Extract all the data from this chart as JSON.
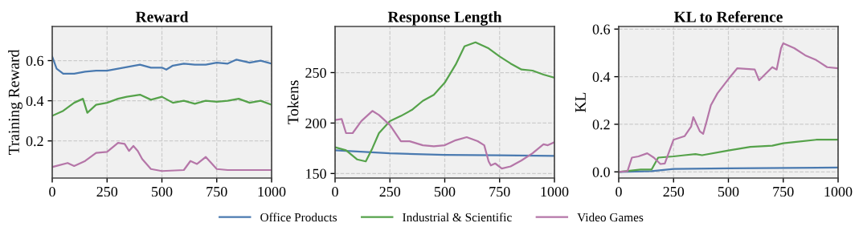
{
  "chart_data": [
    {
      "type": "line",
      "title": "Reward",
      "ylabel": "Training Reward",
      "xlim": [
        0,
        1000
      ],
      "xticks": [
        0,
        250,
        500,
        750,
        1000
      ],
      "ylim": [
        0.015,
        0.77
      ],
      "yticks": [
        0.2,
        0.4,
        0.6
      ],
      "grid": true,
      "legend": "bottom",
      "series": [
        {
          "name": "Office Products",
          "color": "#4a7ab0",
          "x": [
            0,
            20,
            50,
            100,
            150,
            200,
            250,
            300,
            350,
            400,
            450,
            500,
            520,
            550,
            600,
            650,
            700,
            750,
            800,
            840,
            900,
            950,
            1000
          ],
          "values": [
            0.62,
            0.56,
            0.535,
            0.535,
            0.545,
            0.55,
            0.55,
            0.56,
            0.57,
            0.58,
            0.565,
            0.565,
            0.555,
            0.575,
            0.585,
            0.58,
            0.58,
            0.59,
            0.585,
            0.605,
            0.59,
            0.6,
            0.585
          ]
        },
        {
          "name": "Industrial & Scientific",
          "color": "#55a24a",
          "x": [
            0,
            50,
            100,
            140,
            160,
            200,
            250,
            300,
            340,
            400,
            450,
            500,
            550,
            600,
            650,
            700,
            750,
            800,
            850,
            900,
            950,
            1000
          ],
          "values": [
            0.325,
            0.35,
            0.39,
            0.41,
            0.34,
            0.38,
            0.39,
            0.41,
            0.42,
            0.43,
            0.405,
            0.42,
            0.39,
            0.4,
            0.385,
            0.4,
            0.395,
            0.4,
            0.41,
            0.39,
            0.4,
            0.38
          ]
        },
        {
          "name": "Video Games",
          "color": "#b576a8",
          "x": [
            0,
            70,
            100,
            150,
            200,
            250,
            300,
            330,
            350,
            370,
            390,
            410,
            450,
            500,
            600,
            630,
            660,
            700,
            750,
            800,
            1000
          ],
          "values": [
            0.07,
            0.09,
            0.075,
            0.1,
            0.14,
            0.145,
            0.19,
            0.185,
            0.15,
            0.175,
            0.15,
            0.11,
            0.06,
            0.05,
            0.055,
            0.1,
            0.085,
            0.12,
            0.06,
            0.055,
            0.055
          ]
        }
      ]
    },
    {
      "type": "line",
      "title": "Response Length",
      "ylabel": "Tokens",
      "xlim": [
        0,
        1000
      ],
      "xticks": [
        0,
        250,
        500,
        750,
        1000
      ],
      "ylim": [
        145.5,
        295.7
      ],
      "yticks": [
        150,
        200,
        250
      ],
      "grid": true,
      "legend": "bottom",
      "series": [
        {
          "name": "Office Products",
          "color": "#4a7ab0",
          "x": [
            0,
            250,
            500,
            750,
            1000
          ],
          "values": [
            173,
            170,
            168.5,
            168,
            167.5
          ]
        },
        {
          "name": "Industrial & Scientific",
          "color": "#55a24a",
          "x": [
            0,
            50,
            100,
            140,
            170,
            200,
            250,
            300,
            350,
            400,
            450,
            500,
            550,
            590,
            640,
            700,
            750,
            800,
            850,
            900,
            950,
            1000
          ],
          "values": [
            176,
            173,
            164,
            162,
            175,
            190,
            202,
            207,
            213,
            222,
            228,
            240,
            258,
            276,
            280,
            274,
            266,
            259,
            253,
            252,
            248,
            245
          ]
        },
        {
          "name": "Video Games",
          "color": "#b576a8",
          "x": [
            0,
            30,
            50,
            80,
            120,
            170,
            200,
            250,
            300,
            340,
            400,
            450,
            500,
            550,
            600,
            650,
            680,
            700,
            710,
            730,
            760,
            800,
            850,
            900,
            950,
            970,
            1000
          ],
          "values": [
            203,
            204,
            190,
            190,
            202,
            212,
            208,
            198,
            182,
            182,
            178,
            177,
            178,
            183,
            186,
            182,
            178,
            162,
            158,
            160,
            155,
            157,
            163,
            170,
            179,
            178,
            181
          ]
        }
      ]
    },
    {
      "type": "line",
      "title": "KL to Reference",
      "ylabel": "KL",
      "xlim": [
        0,
        1000
      ],
      "xticks": [
        0,
        250,
        500,
        750,
        1000
      ],
      "ylim": [
        -0.026,
        0.611
      ],
      "yticks": [
        {
          "value": 0,
          "label": "0.0"
        },
        0.2,
        0.4,
        0.6
      ],
      "grid": true,
      "legend": "bottom",
      "series": [
        {
          "name": "Office Products",
          "color": "#4a7ab0",
          "x": [
            0,
            150,
            250,
            500,
            1000
          ],
          "values": [
            0,
            0.003,
            0.012,
            0.015,
            0.018
          ]
        },
        {
          "name": "Industrial & Scientific",
          "color": "#55a24a",
          "x": [
            0,
            100,
            150,
            180,
            250,
            300,
            350,
            380,
            500,
            600,
            700,
            750,
            800,
            900,
            1000
          ],
          "values": [
            0,
            0.01,
            0.01,
            0.06,
            0.065,
            0.07,
            0.075,
            0.07,
            0.09,
            0.105,
            0.11,
            0.12,
            0.125,
            0.135,
            0.135
          ]
        },
        {
          "name": "Video Games",
          "color": "#b576a8",
          "x": [
            0,
            40,
            60,
            90,
            130,
            160,
            190,
            210,
            250,
            300,
            330,
            340,
            370,
            385,
            400,
            420,
            450,
            500,
            540,
            620,
            640,
            700,
            720,
            740,
            750,
            800,
            850,
            900,
            950,
            1000
          ],
          "values": [
            0,
            0.003,
            0.06,
            0.065,
            0.078,
            0.06,
            0.033,
            0.035,
            0.135,
            0.15,
            0.19,
            0.23,
            0.17,
            0.16,
            0.21,
            0.28,
            0.33,
            0.39,
            0.435,
            0.43,
            0.385,
            0.44,
            0.43,
            0.52,
            0.54,
            0.52,
            0.49,
            0.47,
            0.44,
            0.435
          ]
        }
      ]
    }
  ]
}
